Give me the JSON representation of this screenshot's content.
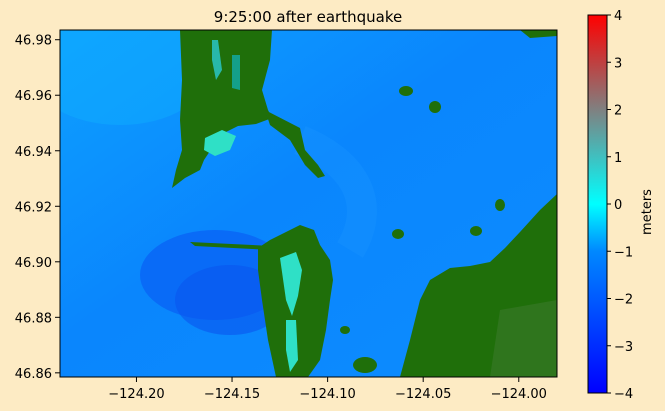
{
  "chart_data": {
    "type": "heatmap",
    "title": "9:25:00 after earthquake",
    "xlim": [
      -124.24,
      -123.98
    ],
    "ylim": [
      46.8585,
      46.9835
    ],
    "x_ticks": [
      {
        "value": -124.2,
        "label": "−124.20"
      },
      {
        "value": -124.15,
        "label": "−124.15"
      },
      {
        "value": -124.1,
        "label": "−124.10"
      },
      {
        "value": -124.05,
        "label": "−124.05"
      },
      {
        "value": -124.0,
        "label": "−124.00"
      }
    ],
    "y_ticks": [
      {
        "value": 46.98,
        "label": "46.98"
      },
      {
        "value": 46.96,
        "label": "46.96"
      },
      {
        "value": 46.94,
        "label": "46.94"
      },
      {
        "value": 46.92,
        "label": "46.92"
      },
      {
        "value": 46.9,
        "label": "46.90"
      },
      {
        "value": 46.88,
        "label": "46.88"
      },
      {
        "value": 46.86,
        "label": "46.86"
      }
    ],
    "colorbar": {
      "label": "meters",
      "range": [
        -4,
        4
      ],
      "ticks": [
        {
          "value": 4,
          "label": "4"
        },
        {
          "value": 3,
          "label": "3"
        },
        {
          "value": 2,
          "label": "2"
        },
        {
          "value": 1,
          "label": "1"
        },
        {
          "value": 0,
          "label": "0"
        },
        {
          "value": -1,
          "label": "−1"
        },
        {
          "value": -2,
          "label": "−2"
        },
        {
          "value": -3,
          "label": "−3"
        },
        {
          "value": -4,
          "label": "−4"
        }
      ],
      "colors": [
        "#0000ff",
        "#0088ff",
        "#00ffff",
        "#808080",
        "#ff0000"
      ]
    },
    "colors": {
      "water": "#0d8cff",
      "deep_water": "#0c5cf2",
      "land": "#1f6f0a",
      "shallow": "#2fe0c6",
      "background": "#fdebc4"
    }
  }
}
